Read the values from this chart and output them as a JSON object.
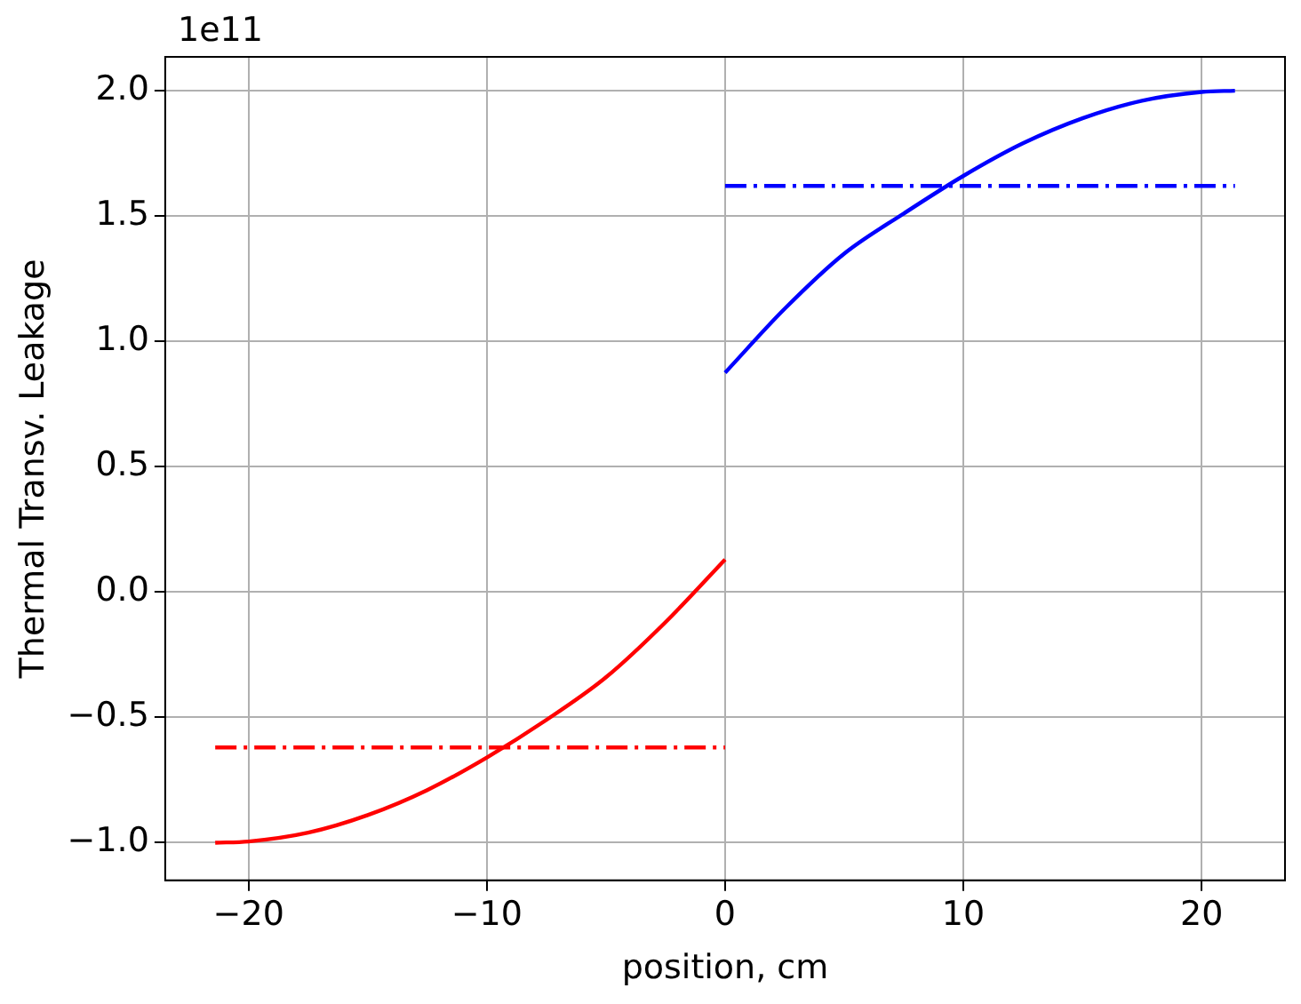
{
  "chart_data": {
    "type": "line",
    "xlabel": "position, cm",
    "ylabel": "Thermal Transv. Leakage",
    "annotations": [
      "1e11"
    ],
    "xlim": [
      -23.5,
      23.5
    ],
    "xticks": [
      -20,
      -10,
      0,
      10,
      20
    ],
    "ylim": [
      -1.15,
      2.135
    ],
    "yticks": [
      {
        "value": -1,
        "label": "−1.0"
      },
      {
        "value": -0.5,
        "label": "−0.5"
      },
      {
        "value": 0,
        "label": "0.0"
      },
      {
        "value": 0.5,
        "label": "0.5"
      },
      {
        "value": 1,
        "label": "1.0"
      },
      {
        "value": 1.5,
        "label": "1.5"
      },
      {
        "value": 2,
        "label": "2.0"
      }
    ],
    "grid": true,
    "marker": "none",
    "series": [
      {
        "color": "#ff0000",
        "x": [
          -21.4,
          -20,
          -17.5,
          -15,
          -12.5,
          -10,
          -7.5,
          -5,
          -2.5,
          0
        ],
        "values": [
          -1.0,
          -0.995,
          -0.96,
          -0.89,
          -0.79,
          -0.66,
          -0.51,
          -0.34,
          -0.12,
          0.13
        ]
      },
      {
        "color": "#ff0000",
        "line_style": "dashed",
        "x": [
          -21.4,
          0
        ],
        "values": [
          -0.62,
          -0.62
        ]
      },
      {
        "color": "#0000ff",
        "x": [
          0,
          2.5,
          5,
          7.5,
          10,
          12.5,
          15,
          17.5,
          20,
          21.4
        ],
        "values": [
          0.875,
          1.13,
          1.35,
          1.51,
          1.66,
          1.79,
          1.89,
          1.96,
          1.995,
          2.0
        ]
      },
      {
        "color": "#0000ff",
        "line_style": "dashed",
        "x": [
          0,
          21.4
        ],
        "values": [
          1.62,
          1.62
        ]
      }
    ]
  }
}
